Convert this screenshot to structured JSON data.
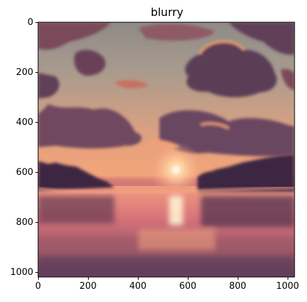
{
  "figure": {
    "title": "blurry",
    "image_description_icon": "sunset-lake-image",
    "x_ticks": [
      "0",
      "200",
      "400",
      "600",
      "800",
      "1000"
    ],
    "y_ticks": [
      "0",
      "200",
      "400",
      "600",
      "800",
      "1000"
    ],
    "x_range": [
      0,
      1024
    ],
    "y_range": [
      0,
      1024
    ],
    "colors": {
      "sky_top": "#7f8a8c",
      "sky_glow": "#f3b27f",
      "sun": "#fff3d6",
      "cloud_dark": "#5a3d55",
      "cloud_edge": "#f08a5a",
      "tree": "#3b2440",
      "water": "#d86d6d"
    }
  }
}
